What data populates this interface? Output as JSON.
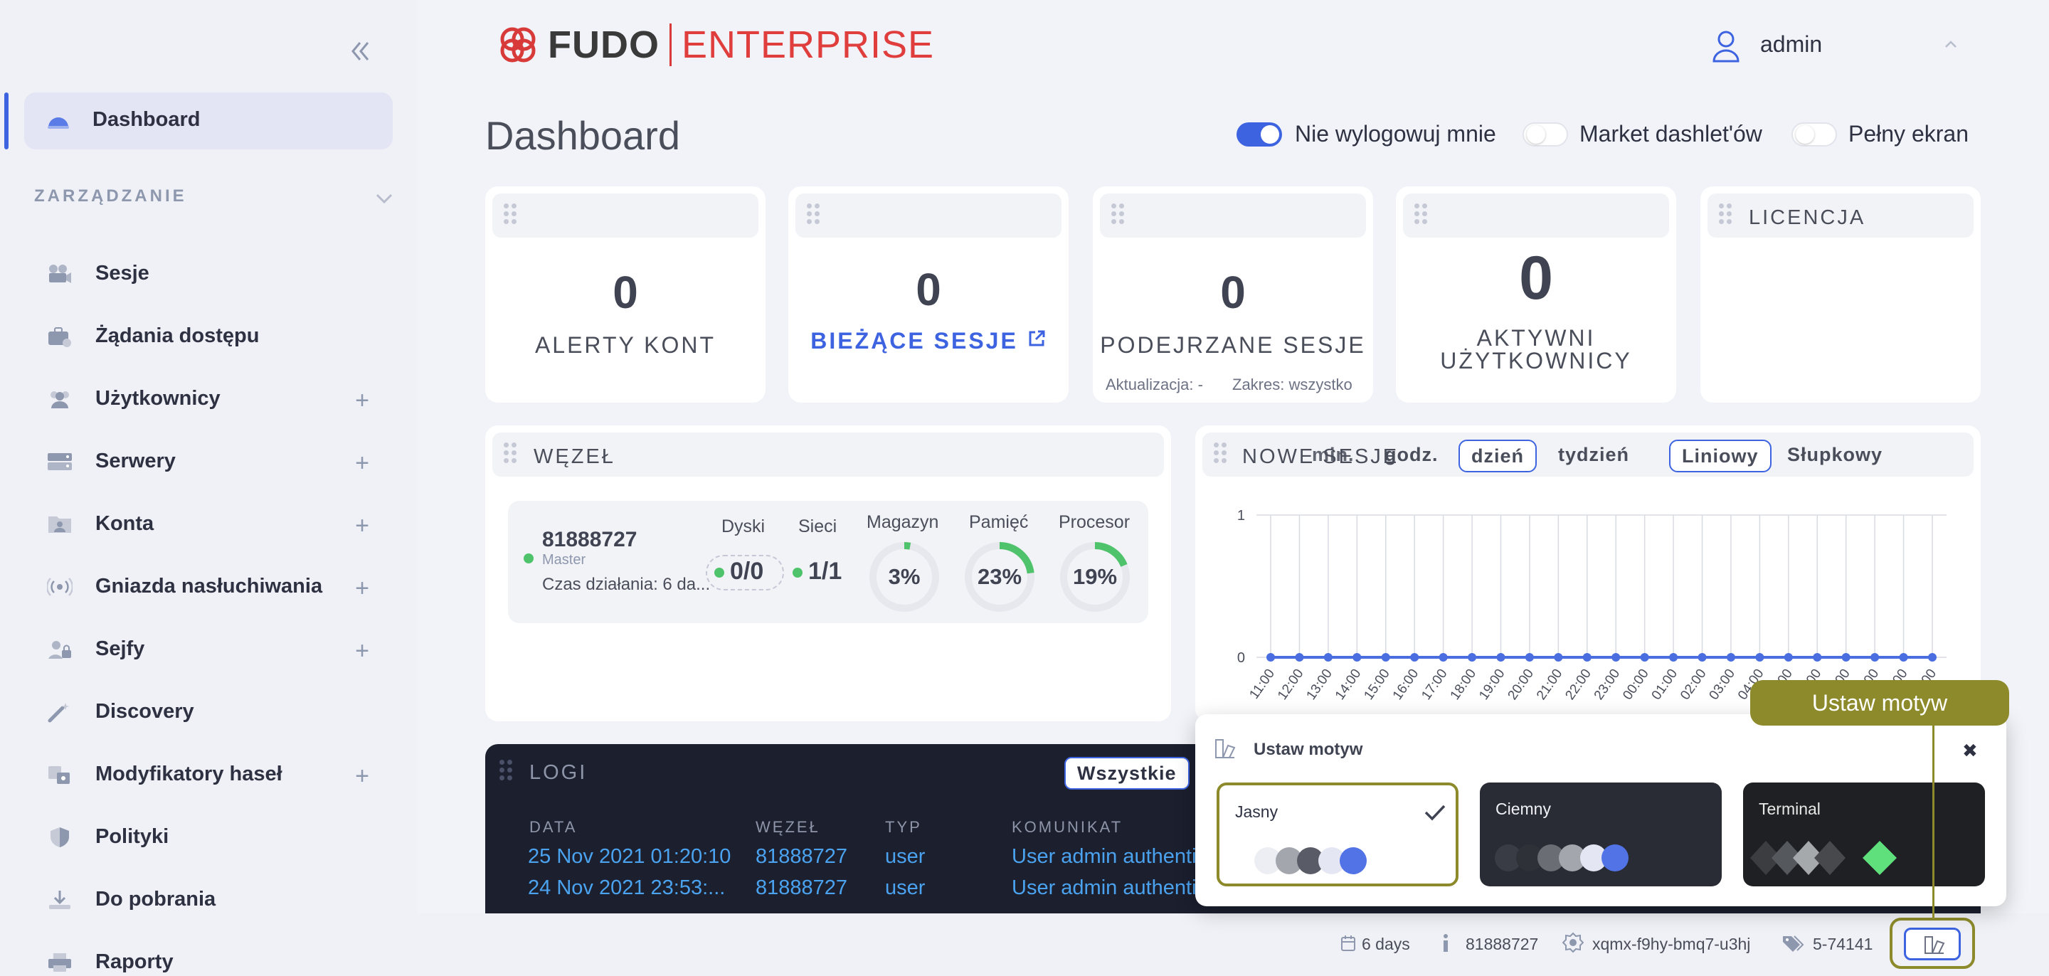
{
  "app": {
    "logo_brand": "FUDO",
    "logo_product": "ENTERPRISE"
  },
  "sidebar": {
    "dashboard_label": "Dashboard",
    "section_label": "ZARZĄDZANIE",
    "items": [
      {
        "label": "Sesje",
        "icon": "camera-icon",
        "expandable": false
      },
      {
        "label": "Żądania dostępu",
        "icon": "briefcase-icon",
        "expandable": false
      },
      {
        "label": "Użytkownicy",
        "icon": "users-icon",
        "expandable": true
      },
      {
        "label": "Serwery",
        "icon": "server-icon",
        "expandable": true
      },
      {
        "label": "Konta",
        "icon": "account-card-icon",
        "expandable": true
      },
      {
        "label": "Gniazda nasłuchiwania",
        "icon": "broadcast-icon",
        "expandable": true
      },
      {
        "label": "Sejfy",
        "icon": "user-lock-icon",
        "expandable": true
      },
      {
        "label": "Discovery",
        "icon": "magic-wand-icon",
        "expandable": false
      },
      {
        "label": "Modyfikatory haseł",
        "icon": "password-modifier-icon",
        "expandable": true
      },
      {
        "label": "Polityki",
        "icon": "shield-icon",
        "expandable": false
      },
      {
        "label": "Do pobrania",
        "icon": "download-icon",
        "expandable": false
      },
      {
        "label": "Raporty",
        "icon": "printer-icon",
        "expandable": false
      }
    ],
    "plus_symbol": "+"
  },
  "header": {
    "username": "admin"
  },
  "page": {
    "title": "Dashboard",
    "toggles": [
      {
        "label": "Nie wylogowuj mnie",
        "on": true
      },
      {
        "label": "Market dashlet'ów",
        "on": false
      },
      {
        "label": "Pełny ekran",
        "on": false
      }
    ]
  },
  "stats": {
    "alerts": {
      "value": "0",
      "label": "ALERTY KONT"
    },
    "sessions": {
      "value": "0",
      "label": "BIEŻĄCE SESJE"
    },
    "suspicious": {
      "value": "0",
      "label": "PODEJRZANE SESJE",
      "update": "Aktualizacja: -",
      "range": "Zakres: wszystko"
    },
    "active_users": {
      "value": "0",
      "label_line1": "AKTYWNI",
      "label_line2": "UŻYTKOWNICY"
    },
    "license": {
      "label": "LICENCJA"
    }
  },
  "node": {
    "title": "WĘZEŁ",
    "id": "81888727",
    "role": "Master",
    "uptime": "Czas działania: 6 da...",
    "disks_label": "Dyski",
    "disks_value": "0/0",
    "networks_label": "Sieci",
    "networks_value": "1/1",
    "storage_label": "Magazyn",
    "storage_value": "3%",
    "storage_pct": 3,
    "memory_label": "Pamięć",
    "memory_value": "23%",
    "memory_pct": 23,
    "cpu_label": "Procesor",
    "cpu_value": "19%",
    "cpu_pct": 19,
    "accent": "#4fc36b"
  },
  "sessions_chart": {
    "title": "NOWE SESJE",
    "range_tabs": [
      "min.",
      "godz.",
      "dzień",
      "tydzień"
    ],
    "range_selected": "dzień",
    "type_tabs": [
      "Liniowy",
      "Słupkowy"
    ],
    "type_selected": "Liniowy"
  },
  "chart_data": {
    "type": "line",
    "x": [
      "11:00",
      "12:00",
      "13:00",
      "14:00",
      "15:00",
      "16:00",
      "17:00",
      "18:00",
      "19:00",
      "20:00",
      "21:00",
      "22:00",
      "23:00",
      "00:00",
      "01:00",
      "02:00",
      "03:00",
      "04:00",
      "05:00",
      "06:00",
      "07:00",
      "08:00",
      "09:00",
      "10:00"
    ],
    "series": [
      {
        "values": [
          0,
          0,
          0,
          0,
          0,
          0,
          0,
          0,
          0,
          0,
          0,
          0,
          0,
          0,
          0,
          0,
          0,
          0,
          0,
          0,
          0,
          0,
          0,
          0
        ]
      }
    ],
    "ylim": [
      0,
      1
    ],
    "yticks": [
      "0",
      "1"
    ],
    "grid": true,
    "color": "#4a6ee0"
  },
  "logs": {
    "title": "LOGI",
    "filter": "Wszystkie",
    "columns": [
      "DATA",
      "WĘZEŁ",
      "TYP",
      "KOMUNIKAT"
    ],
    "rows": [
      [
        "25 Nov 2021 01:20:10",
        "81888727",
        "user",
        "User admin authenti"
      ],
      [
        "24 Nov 2021 23:53:...",
        "81888727",
        "user",
        "User admin authenti"
      ]
    ]
  },
  "footer": {
    "uptime": "6 days",
    "node": "81888727",
    "id": "xqmx-f9hy-bmq7-u3hj",
    "version": "5-74141"
  },
  "theme": {
    "title": "Ustaw motyw",
    "callout": "Ustaw motyw",
    "close": "✖",
    "options": [
      {
        "name": "Jasny",
        "selected": true
      },
      {
        "name": "Ciemny",
        "selected": false
      },
      {
        "name": "Terminal",
        "selected": false
      }
    ],
    "highlight": "#8c8a2b"
  }
}
